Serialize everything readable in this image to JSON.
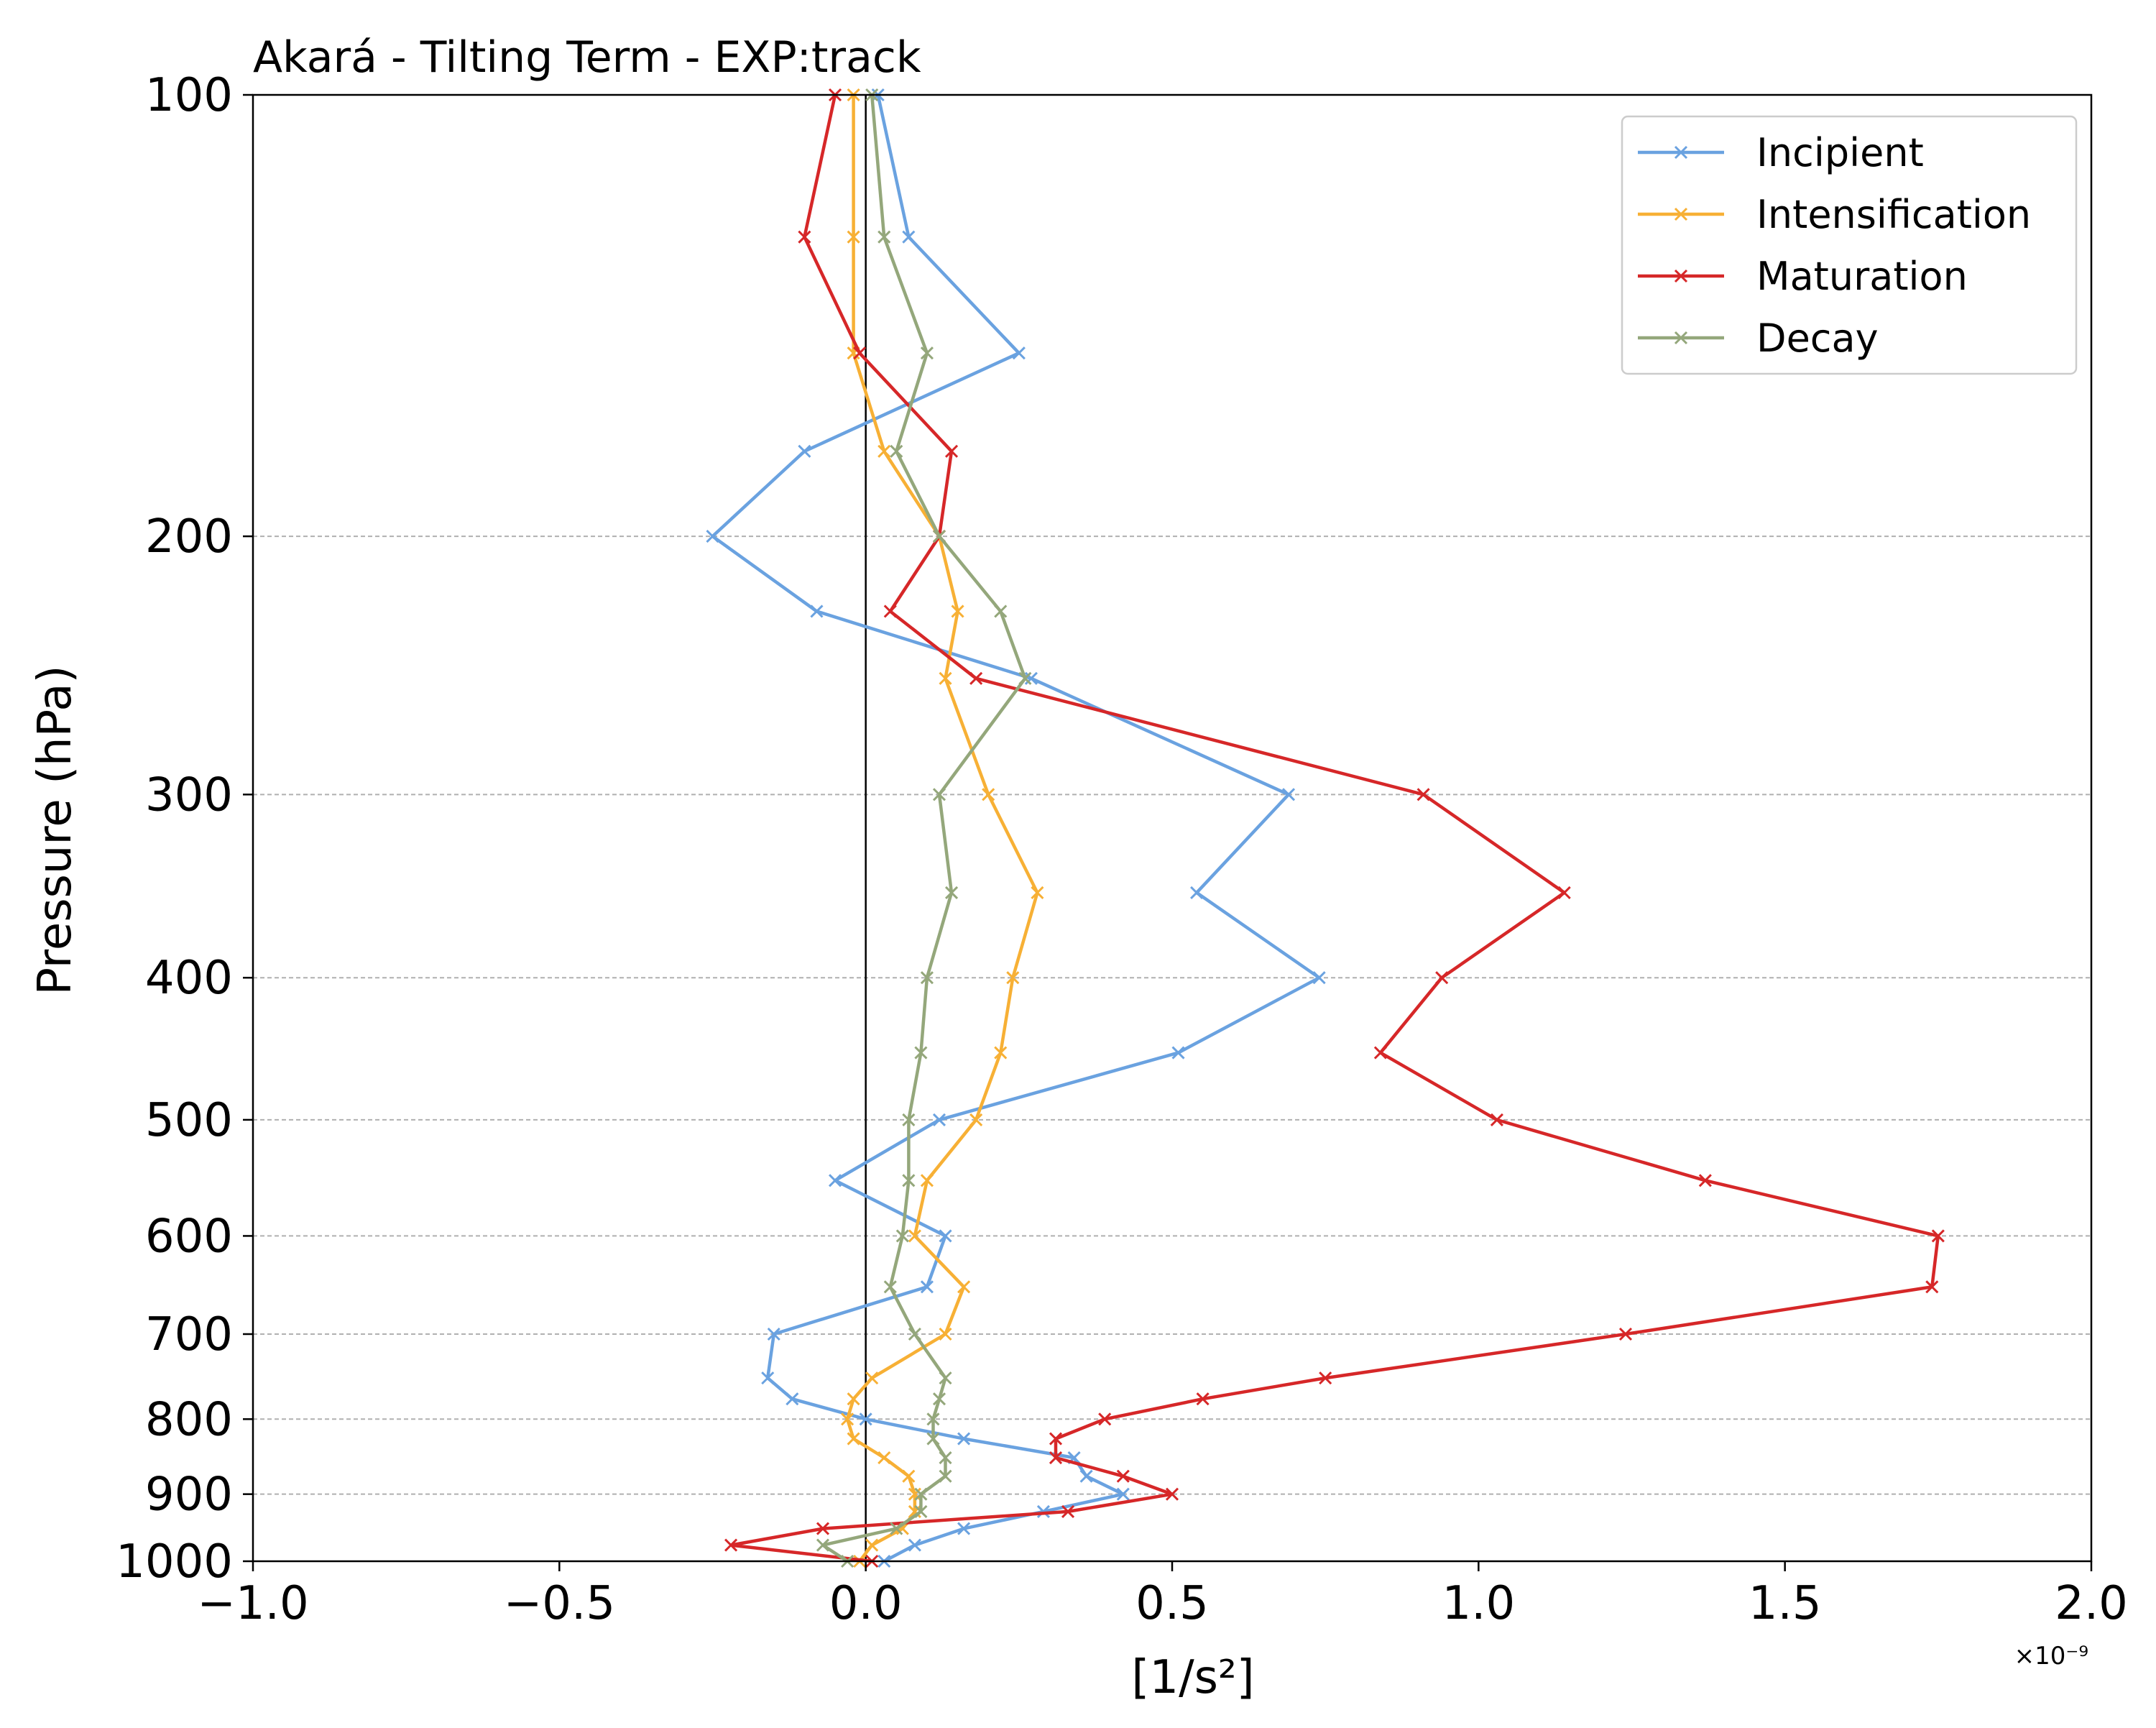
{
  "chart_data": {
    "type": "line",
    "title": "Akará - Tilting Term - EXP:track",
    "xlabel": "[1/s²]",
    "ylabel": "Pressure (hPa)",
    "x_offset_label": "×10⁻⁹",
    "x_scale_exponent": -9,
    "xlim": [
      -1.0,
      2.0
    ],
    "ylim": [
      1000,
      100
    ],
    "y_scale": "log",
    "y_inverted": true,
    "xticks": [
      -1.0,
      -0.5,
      0.0,
      0.5,
      1.0,
      1.5,
      2.0
    ],
    "xtick_labels": [
      "−1.0",
      "−0.5",
      "0.0",
      "0.5",
      "1.0",
      "1.5",
      "2.0"
    ],
    "yticks": [
      100,
      200,
      300,
      400,
      500,
      600,
      700,
      800,
      900,
      1000
    ],
    "ytick_labels": [
      "100",
      "200",
      "300",
      "400",
      "500",
      "600",
      "700",
      "800",
      "900",
      "1000"
    ],
    "grid": "horizontal dashed at y ticks",
    "zero_line": true,
    "legend_position": "top-right",
    "pressure_levels": [
      100,
      125,
      150,
      175,
      200,
      225,
      250,
      300,
      350,
      400,
      450,
      500,
      550,
      600,
      650,
      700,
      750,
      775,
      800,
      825,
      850,
      875,
      900,
      925,
      950,
      975,
      1000
    ],
    "series": [
      {
        "name": "Incipient",
        "color": "#6aa2e0",
        "values": [
          0.02,
          0.07,
          0.25,
          -0.1,
          -0.25,
          -0.08,
          0.27,
          0.69,
          0.54,
          0.74,
          0.51,
          0.12,
          -0.05,
          0.13,
          0.1,
          -0.15,
          -0.16,
          -0.12,
          0.0,
          0.16,
          0.34,
          0.36,
          0.42,
          0.29,
          0.16,
          0.08,
          0.03
        ]
      },
      {
        "name": "Intensification",
        "color": "#f7b035",
        "values": [
          -0.02,
          -0.02,
          -0.02,
          0.03,
          0.12,
          0.15,
          0.13,
          0.2,
          0.28,
          0.24,
          0.22,
          0.18,
          0.1,
          0.08,
          0.16,
          0.13,
          0.01,
          -0.02,
          -0.03,
          -0.02,
          0.03,
          0.07,
          0.08,
          0.08,
          0.06,
          0.01,
          -0.01
        ]
      },
      {
        "name": "Maturation",
        "color": "#d62728",
        "values": [
          -0.05,
          -0.1,
          -0.01,
          0.14,
          0.12,
          0.04,
          0.18,
          0.91,
          1.14,
          0.94,
          0.84,
          1.03,
          1.37,
          1.75,
          1.74,
          1.24,
          0.75,
          0.55,
          0.39,
          0.31,
          0.31,
          0.42,
          0.5,
          0.33,
          -0.07,
          -0.22,
          0.01
        ]
      },
      {
        "name": "Decay",
        "color": "#94a77b",
        "values": [
          0.01,
          0.03,
          0.1,
          0.05,
          0.12,
          0.22,
          0.26,
          0.12,
          0.14,
          0.1,
          0.09,
          0.07,
          0.07,
          0.06,
          0.04,
          0.08,
          0.13,
          0.12,
          0.11,
          0.11,
          0.13,
          0.13,
          0.09,
          0.09,
          0.05,
          -0.07,
          -0.03
        ]
      }
    ]
  }
}
